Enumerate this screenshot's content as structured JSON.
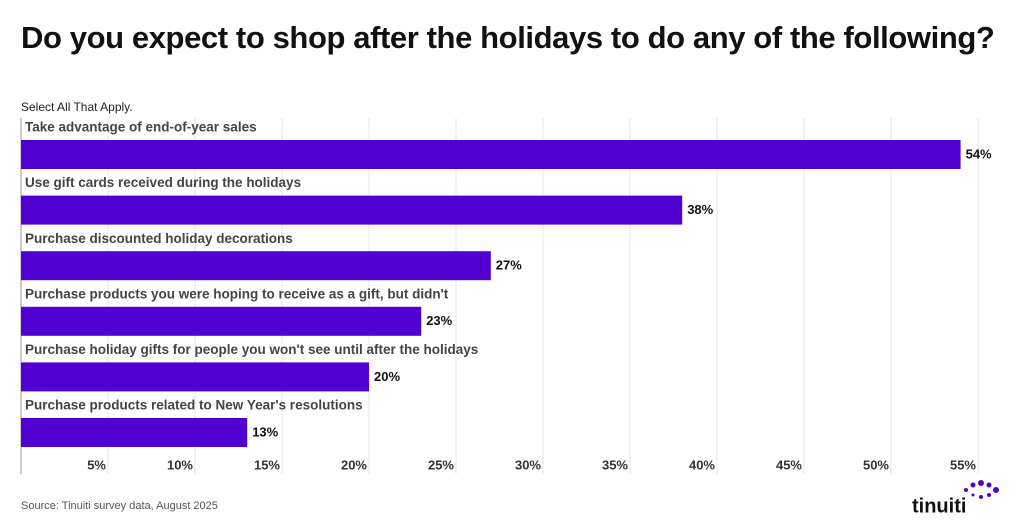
{
  "chart_data": {
    "type": "bar",
    "orientation": "horizontal",
    "title": "Do you expect to shop after the holidays to do any of the following?",
    "subtitle": "Select All That Apply.",
    "source": "Source: Tinuiti survey data, August 2025",
    "logo": "tinuiti",
    "categories": [
      "Take advantage of end-of-year sales",
      "Use gift cards received during the holidays",
      "Purchase discounted holiday decorations",
      "Purchase products you were hoping to receive as a gift, but didn't",
      "Purchase holiday gifts for people you won't see until after the holidays",
      "Purchase products related to New Year's resolutions"
    ],
    "values": [
      54,
      38,
      27,
      23,
      20,
      13
    ],
    "value_labels": [
      "54%",
      "38%",
      "27%",
      "23%",
      "20%",
      "13%"
    ],
    "color": "#5000d0",
    "xlim": [
      0,
      55
    ],
    "xticks": [
      {
        "value": 5,
        "label": "5%"
      },
      {
        "value": 10,
        "label": "10%"
      },
      {
        "value": 15,
        "label": "15%"
      },
      {
        "value": 20,
        "label": "20%"
      },
      {
        "value": 25,
        "label": "25%"
      },
      {
        "value": 30,
        "label": "30%"
      },
      {
        "value": 35,
        "label": "35%"
      },
      {
        "value": 40,
        "label": "40%"
      },
      {
        "value": 45,
        "label": "45%"
      },
      {
        "value": 50,
        "label": "50%"
      },
      {
        "value": 55,
        "label": "55%"
      }
    ],
    "grid": true
  }
}
